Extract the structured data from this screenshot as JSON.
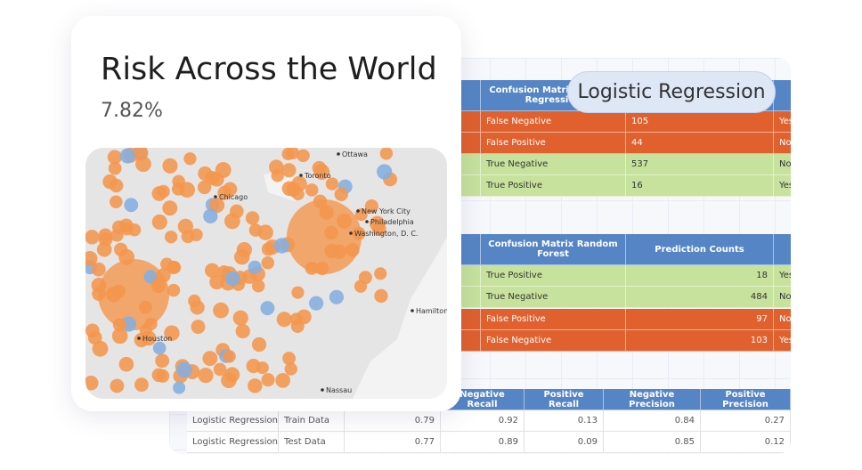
{
  "card": {
    "title": "Risk Across the World",
    "value": "7.82%",
    "map_labels": [
      "Ottawa",
      "Toronto",
      "Chicago",
      "New York City",
      "Philadelphia",
      "Washington, D. C.",
      "Hamilton",
      "Houston",
      "Nassau"
    ]
  },
  "badge": "Logistic Regression",
  "table1": {
    "header": "Confusion Matrix Logistic Regression",
    "rows": [
      [
        "False Negative",
        105,
        "Yes"
      ],
      [
        "False Positive",
        44,
        "No"
      ],
      [
        "True Negative",
        537,
        "No"
      ],
      [
        "True Positive",
        16,
        "Yes"
      ]
    ]
  },
  "table2": {
    "headers": [
      "Confusion Matrix Random Forest",
      "Prediction Counts"
    ],
    "rows": [
      [
        "True Positive",
        18,
        "Yes"
      ],
      [
        "True Negative",
        484,
        "No"
      ],
      [
        "False Positive",
        97,
        "No"
      ],
      [
        "False Negative",
        103,
        "Yes"
      ]
    ]
  },
  "table3": {
    "headers": [
      "Negative Recall",
      "Positive Recall",
      "Negative Precision",
      "Positive Precision"
    ],
    "rows": [
      [
        "Logistic Regression",
        "Train Data",
        0.79,
        0.92,
        0.13,
        0.84,
        0.27
      ],
      [
        "Logistic Regression",
        "Test Data",
        0.77,
        0.89,
        0.09,
        0.85,
        0.12
      ]
    ]
  }
}
